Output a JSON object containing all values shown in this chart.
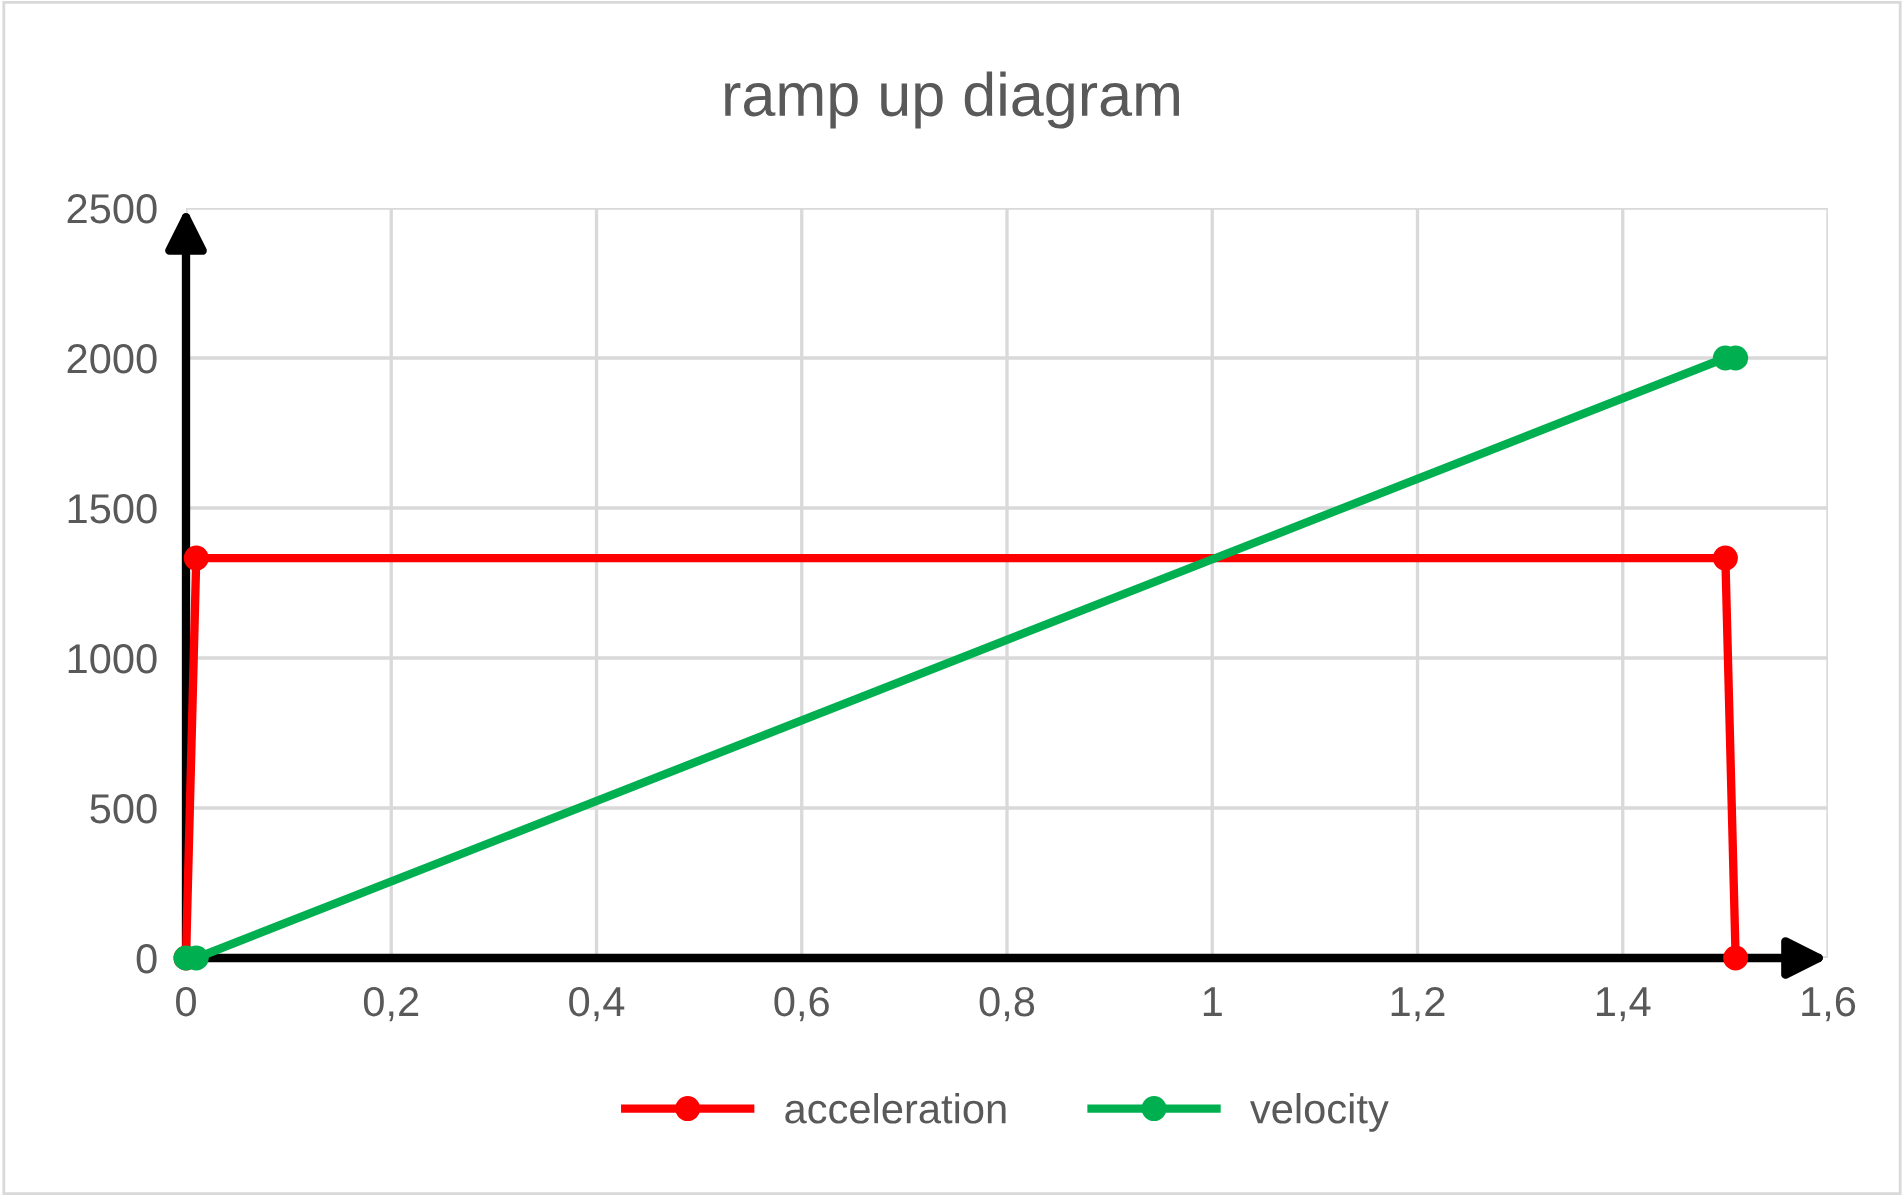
{
  "chart_data": {
    "type": "line",
    "title": "ramp up diagram",
    "series": [
      {
        "name": "acceleration",
        "color": "#ff0000",
        "x": [
          0,
          0.01,
          1.5,
          1.51
        ],
        "values": [
          0,
          1333,
          1333,
          0
        ]
      },
      {
        "name": "velocity",
        "color": "#00b050",
        "x": [
          0,
          0.01,
          1.5,
          1.51
        ],
        "values": [
          0,
          0,
          2000,
          2000
        ]
      }
    ],
    "xlim": [
      0,
      1.6
    ],
    "ylim": [
      0,
      2500
    ],
    "xticks": [
      0,
      {
        "value": 0.2,
        "label": "0,2"
      },
      {
        "value": 0.4,
        "label": "0,4"
      },
      {
        "value": 0.6,
        "label": "0,6"
      },
      {
        "value": 0.8,
        "label": "0,8"
      },
      1,
      {
        "value": 1.2,
        "label": "1,2"
      },
      {
        "value": 1.4,
        "label": "1,4"
      },
      {
        "value": 1.6,
        "label": "1,6"
      }
    ],
    "yticks": [
      0,
      500,
      1000,
      1500,
      2000,
      2500
    ],
    "grid": true,
    "legend": "bottom",
    "marker": "circle",
    "line_style": "solid"
  }
}
